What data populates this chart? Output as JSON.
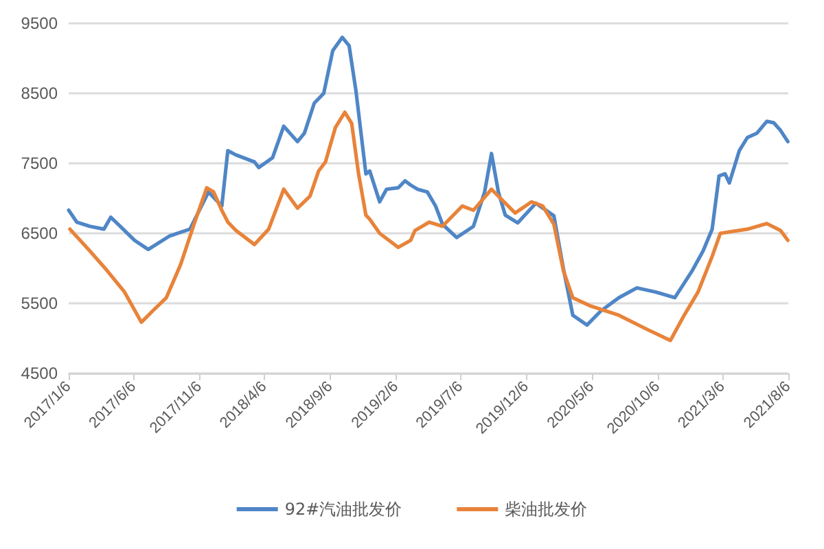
{
  "chart_data": {
    "type": "line",
    "ylim": [
      4500,
      9500
    ],
    "yticks": [
      4500,
      5500,
      6500,
      7500,
      8500,
      9500
    ],
    "xlim": [
      "2017-01-06",
      "2021-08-06"
    ],
    "xticks": [
      {
        "value": "2017-01-06",
        "label": "2017/1/6"
      },
      {
        "value": "2017-06-06",
        "label": "2017/6/6"
      },
      {
        "value": "2017-11-06",
        "label": "2017/11/6"
      },
      {
        "value": "2018-04-06",
        "label": "2018/4/6"
      },
      {
        "value": "2018-09-06",
        "label": "2018/9/6"
      },
      {
        "value": "2019-02-06",
        "label": "2019/2/6"
      },
      {
        "value": "2019-07-06",
        "label": "2019/7/6"
      },
      {
        "value": "2019-12-06",
        "label": "2019/12/6"
      },
      {
        "value": "2020-05-06",
        "label": "2020/5/6"
      },
      {
        "value": "2020-10-06",
        "label": "2020/10/6"
      },
      {
        "value": "2021-03-06",
        "label": "2021/3/6"
      },
      {
        "value": "2021-08-06",
        "label": "2021/8/6"
      }
    ],
    "grid": "y",
    "legend": "bottom",
    "marker": "none",
    "line_style": "solid",
    "series": [
      {
        "name": "92#汽油批发价",
        "color": "#4f86c6",
        "x": [
          "2017-01-06",
          "2017-01-25",
          "2017-02-24",
          "2017-03-29",
          "2017-04-14",
          "2017-05-06",
          "2017-06-08",
          "2017-07-10",
          "2017-08-28",
          "2017-10-15",
          "2017-11-27",
          "2017-12-28",
          "2018-01-11",
          "2018-01-30",
          "2018-03-14",
          "2018-03-24",
          "2018-04-25",
          "2018-05-21",
          "2018-06-22",
          "2018-07-08",
          "2018-07-31",
          "2018-08-22",
          "2018-09-12",
          "2018-10-04",
          "2018-10-20",
          "2018-11-05",
          "2018-11-28",
          "2018-12-07",
          "2018-12-30",
          "2019-01-15",
          "2019-02-11",
          "2019-02-27",
          "2019-03-12",
          "2019-03-28",
          "2019-04-20",
          "2019-05-09",
          "2019-05-25",
          "2019-06-27",
          "2019-08-05",
          "2019-08-31",
          "2019-09-16",
          "2019-10-02",
          "2019-10-18",
          "2019-11-16",
          "2019-12-28",
          "2020-02-08",
          "2020-03-01",
          "2020-03-23",
          "2020-04-25",
          "2020-05-27",
          "2020-07-08",
          "2020-08-19",
          "2020-10-03",
          "2020-11-15",
          "2020-12-26",
          "2021-01-20",
          "2021-02-10",
          "2021-02-26",
          "2021-03-12",
          "2021-03-22",
          "2021-04-14",
          "2021-05-03",
          "2021-05-25",
          "2021-06-17",
          "2021-07-03",
          "2021-07-19",
          "2021-08-05"
        ],
        "values": [
          6830,
          6660,
          6600,
          6560,
          6730,
          6600,
          6400,
          6270,
          6460,
          6560,
          7090,
          6890,
          7680,
          7620,
          7520,
          7440,
          7580,
          8030,
          7810,
          7930,
          8360,
          8500,
          9110,
          9300,
          9180,
          8530,
          7350,
          7390,
          6950,
          7130,
          7150,
          7250,
          7190,
          7130,
          7090,
          6890,
          6630,
          6440,
          6600,
          7090,
          7640,
          7090,
          6760,
          6650,
          6930,
          6750,
          6000,
          5330,
          5190,
          5390,
          5580,
          5720,
          5660,
          5580,
          5970,
          6250,
          6560,
          7320,
          7350,
          7220,
          7680,
          7870,
          7930,
          8100,
          8080,
          7970,
          7810
        ]
      },
      {
        "name": "柴油批发价",
        "color": "#e8833a",
        "x": [
          "2017-01-09",
          "2017-02-24",
          "2017-04-05",
          "2017-05-16",
          "2017-06-24",
          "2017-07-20",
          "2017-08-21",
          "2017-09-23",
          "2017-10-25",
          "2017-11-23",
          "2017-12-09",
          "2017-12-28",
          "2018-01-11",
          "2018-01-30",
          "2018-03-14",
          "2018-04-16",
          "2018-05-21",
          "2018-06-22",
          "2018-07-21",
          "2018-08-10",
          "2018-08-26",
          "2018-09-18",
          "2018-10-10",
          "2018-10-26",
          "2018-11-11",
          "2018-11-28",
          "2018-12-07",
          "2018-12-30",
          "2019-02-11",
          "2019-03-12",
          "2019-03-22",
          "2019-04-24",
          "2019-05-25",
          "2019-07-10",
          "2019-08-05",
          "2019-09-16",
          "2019-10-15",
          "2019-11-10",
          "2019-12-18",
          "2020-01-13",
          "2020-02-08",
          "2020-03-01",
          "2020-03-23",
          "2020-05-04",
          "2020-07-08",
          "2020-09-11",
          "2020-11-05",
          "2020-12-07",
          "2021-01-08",
          "2021-02-10",
          "2021-03-01",
          "2021-05-03",
          "2021-06-17",
          "2021-07-19",
          "2021-08-05"
        ],
        "values": [
          6560,
          6250,
          5970,
          5660,
          5230,
          5390,
          5580,
          6050,
          6640,
          7150,
          7090,
          6830,
          6660,
          6540,
          6340,
          6560,
          7130,
          6860,
          7030,
          7390,
          7520,
          8010,
          8230,
          8070,
          7350,
          6760,
          6700,
          6500,
          6300,
          6400,
          6540,
          6660,
          6600,
          6890,
          6830,
          7130,
          6950,
          6790,
          6950,
          6890,
          6630,
          5970,
          5580,
          5460,
          5330,
          5130,
          4970,
          5330,
          5660,
          6170,
          6500,
          6560,
          6640,
          6540,
          6400
        ]
      }
    ]
  }
}
